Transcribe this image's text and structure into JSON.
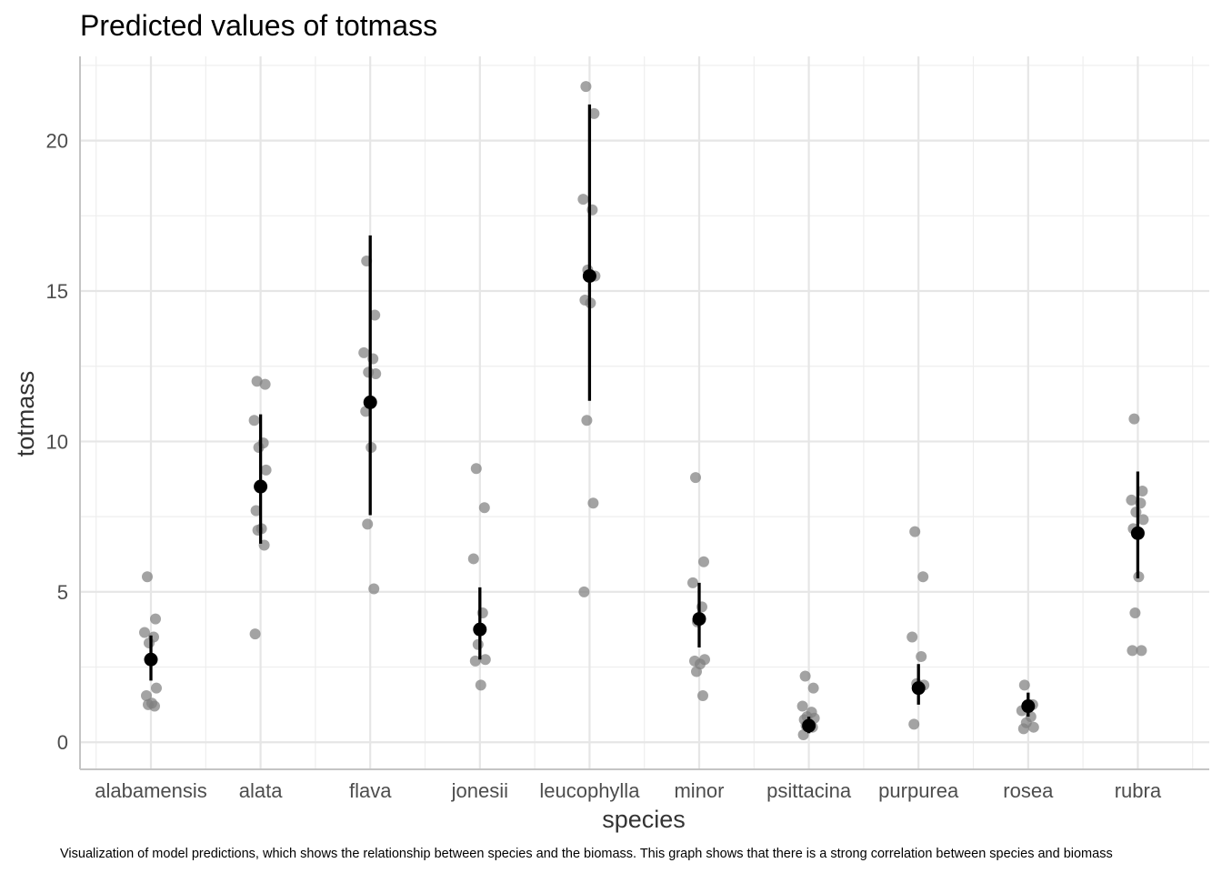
{
  "chart_data": {
    "type": "scatter",
    "title": "Predicted values of totmass",
    "xlabel": "species",
    "ylabel": "totmass",
    "caption": "Visualization of model predictions, which shows the relationship between species and the biomass. This graph shows that there is a strong correlation between species and biomass",
    "categories": [
      "alabamensis",
      "alata",
      "flava",
      "jonesii",
      "leucophylla",
      "minor",
      "psittacina",
      "purpurea",
      "rosea",
      "rubra"
    ],
    "y_ticks": [
      0,
      5,
      10,
      15,
      20
    ],
    "ylim": [
      -0.9,
      22.8
    ],
    "grid": true,
    "predictions": [
      {
        "species": "alabamensis",
        "value": 2.75,
        "ci_low": 2.05,
        "ci_high": 3.55
      },
      {
        "species": "alata",
        "value": 8.5,
        "ci_low": 6.6,
        "ci_high": 10.9
      },
      {
        "species": "flava",
        "value": 11.3,
        "ci_low": 7.55,
        "ci_high": 16.85
      },
      {
        "species": "jonesii",
        "value": 3.75,
        "ci_low": 2.75,
        "ci_high": 5.15
      },
      {
        "species": "leucophylla",
        "value": 15.5,
        "ci_low": 11.35,
        "ci_high": 21.2
      },
      {
        "species": "minor",
        "value": 4.1,
        "ci_low": 3.15,
        "ci_high": 5.3
      },
      {
        "species": "psittacina",
        "value": 0.55,
        "ci_low": 0.3,
        "ci_high": 0.85
      },
      {
        "species": "purpurea",
        "value": 1.8,
        "ci_low": 1.25,
        "ci_high": 2.6
      },
      {
        "species": "rosea",
        "value": 1.2,
        "ci_low": 0.85,
        "ci_high": 1.65
      },
      {
        "species": "rubra",
        "value": 6.95,
        "ci_low": 5.45,
        "ci_high": 9.0
      }
    ],
    "observations": [
      {
        "species": "alabamensis",
        "values": [
          5.5,
          4.1,
          3.65,
          3.5,
          3.3,
          1.8,
          1.55,
          1.3,
          1.25,
          1.2
        ]
      },
      {
        "species": "alata",
        "values": [
          12.0,
          11.9,
          10.7,
          9.95,
          9.8,
          9.05,
          7.7,
          7.1,
          7.05,
          6.55,
          3.6
        ]
      },
      {
        "species": "flava",
        "values": [
          16.0,
          14.2,
          12.95,
          12.75,
          12.3,
          12.25,
          11.0,
          9.8,
          7.25,
          5.1
        ]
      },
      {
        "species": "jonesii",
        "values": [
          9.1,
          7.8,
          6.1,
          4.3,
          3.25,
          2.75,
          2.7,
          1.9
        ]
      },
      {
        "species": "leucophylla",
        "values": [
          21.8,
          20.9,
          18.05,
          17.7,
          15.7,
          15.5,
          14.7,
          14.6,
          10.7,
          7.95,
          5.0
        ]
      },
      {
        "species": "minor",
        "values": [
          8.8,
          6.0,
          5.3,
          4.5,
          4.0,
          2.75,
          2.7,
          2.6,
          2.35,
          1.55
        ]
      },
      {
        "species": "psittacina",
        "values": [
          2.2,
          1.8,
          1.2,
          1.0,
          0.85,
          0.8,
          0.75,
          0.6,
          0.55,
          0.5,
          0.25
        ]
      },
      {
        "species": "purpurea",
        "values": [
          7.0,
          5.5,
          3.5,
          2.85,
          1.95,
          1.9,
          0.6
        ]
      },
      {
        "species": "rosea",
        "values": [
          1.9,
          1.25,
          1.05,
          0.85,
          0.65,
          0.5,
          0.45
        ]
      },
      {
        "species": "rubra",
        "values": [
          10.75,
          8.35,
          8.05,
          7.95,
          7.65,
          7.4,
          7.1,
          5.5,
          4.3,
          3.05,
          3.05
        ]
      }
    ],
    "colors": {
      "observation": "#808080",
      "prediction": "#000000",
      "errorbar": "#000000"
    }
  }
}
